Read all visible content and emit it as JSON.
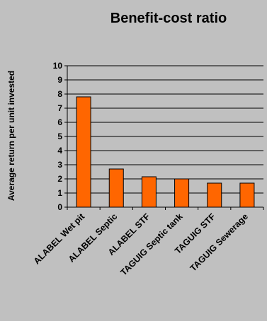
{
  "chart_data": {
    "type": "bar",
    "title": "Benefit-cost ratio",
    "xlabel": "",
    "ylabel": "Average return per unit invested",
    "categories": [
      "ALABEL Wet pit",
      "ALABEL Septic",
      "ALABEL STF",
      "TAGUIG Septic tank",
      "TAGUIG STF",
      "TAGUIG Sewerage"
    ],
    "values": [
      7.8,
      2.7,
      2.15,
      2.0,
      1.7,
      1.7
    ],
    "ylim": [
      0,
      10
    ],
    "yticks": [
      "0",
      "1",
      "2",
      "3",
      "4",
      "5",
      "6",
      "7",
      "8",
      "9",
      "10"
    ],
    "grid": true,
    "legend": "none",
    "colors": {
      "background": "#c0c0c0",
      "bar_fill": "#ff6600",
      "bar_edge": "#000000",
      "grid": "#000000"
    }
  }
}
